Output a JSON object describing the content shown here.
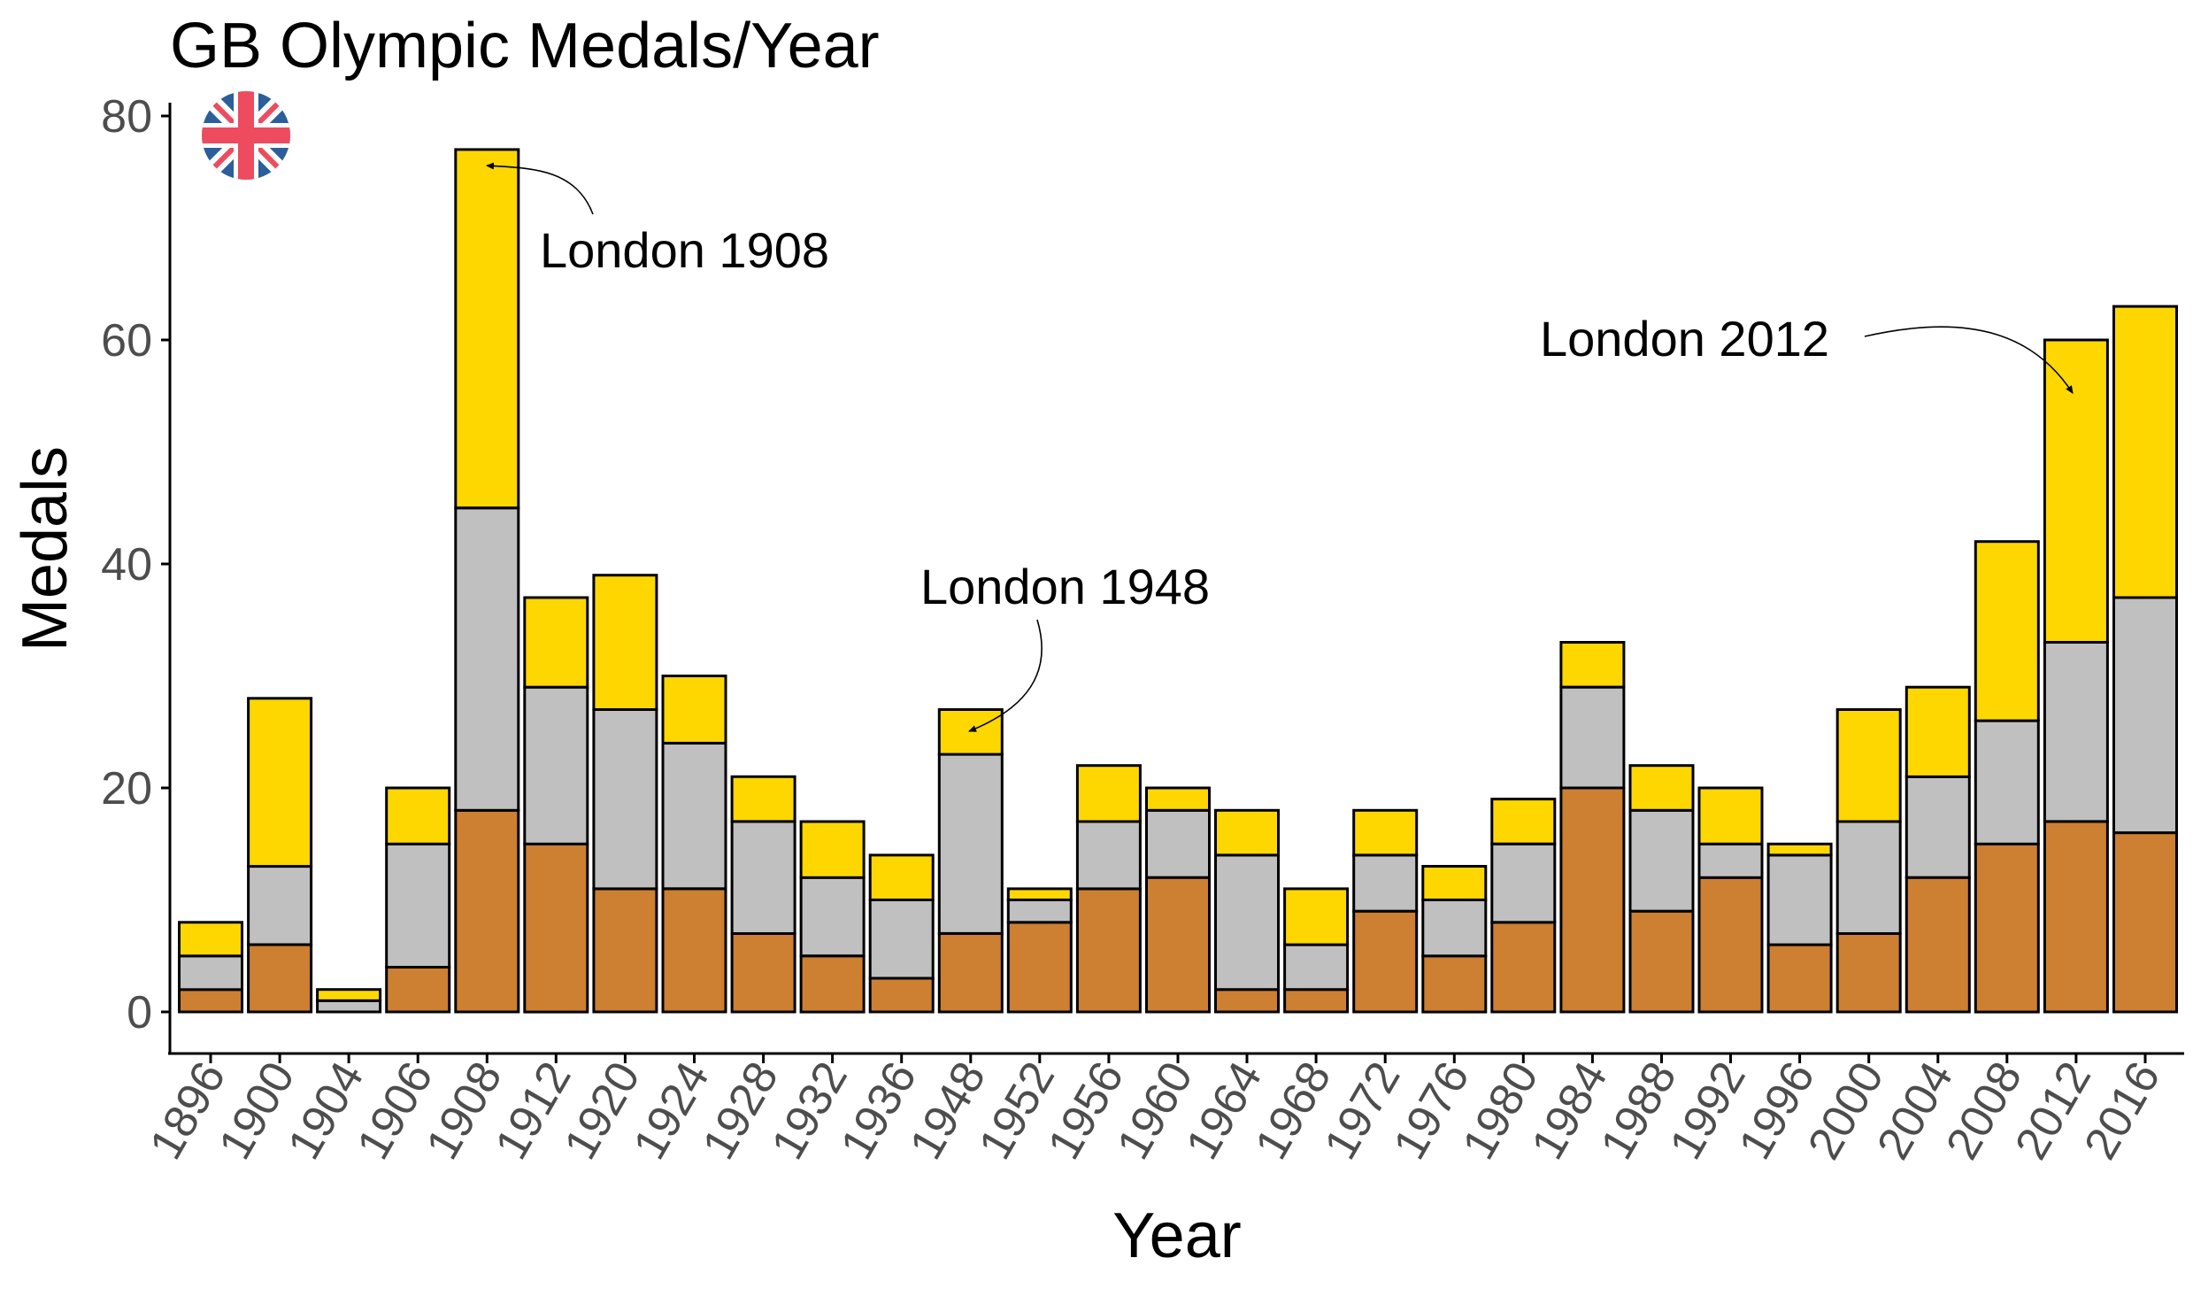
{
  "chart_data": {
    "type": "bar",
    "stacked": true,
    "title": "GB Olympic Medals/Year",
    "xlabel": "Year",
    "ylabel": "Medals",
    "ylim": [
      0,
      80
    ],
    "yticks": [
      "0",
      "20",
      "40",
      "60",
      "80"
    ],
    "grid": false,
    "legend": "none",
    "categories": [
      "1896",
      "1900",
      "1904",
      "1906",
      "1908",
      "1912",
      "1920",
      "1924",
      "1928",
      "1932",
      "1936",
      "1948",
      "1952",
      "1956",
      "1960",
      "1964",
      "1968",
      "1972",
      "1976",
      "1980",
      "1984",
      "1988",
      "1992",
      "1996",
      "2000",
      "2004",
      "2008",
      "2012",
      "2016"
    ],
    "series": [
      {
        "key": "bronze",
        "color": "#CD7F32",
        "values": [
          2,
          6,
          0,
          4,
          18,
          15,
          11,
          11,
          7,
          5,
          3,
          7,
          8,
          11,
          12,
          2,
          2,
          9,
          5,
          8,
          20,
          9,
          12,
          6,
          7,
          12,
          15,
          17,
          16
        ]
      },
      {
        "key": "silver",
        "color": "#C0C0C0",
        "values": [
          3,
          7,
          1,
          11,
          27,
          14,
          16,
          13,
          10,
          7,
          7,
          16,
          2,
          6,
          6,
          12,
          4,
          5,
          5,
          7,
          9,
          9,
          3,
          8,
          10,
          9,
          11,
          16,
          21
        ]
      },
      {
        "key": "gold",
        "color": "#FFD700",
        "values": [
          3,
          15,
          1,
          5,
          32,
          8,
          12,
          6,
          4,
          5,
          4,
          4,
          1,
          5,
          2,
          4,
          5,
          4,
          3,
          4,
          4,
          4,
          5,
          1,
          10,
          8,
          16,
          27,
          26
        ]
      }
    ],
    "annotations": [
      {
        "text": "London 1908",
        "target": "1908"
      },
      {
        "text": "London 1948",
        "target": "1948"
      },
      {
        "text": "London 2012",
        "target": "2012"
      }
    ]
  },
  "flag": {
    "icon": "union-jack-icon",
    "blue": "#2B5E9A",
    "red": "#EE4B5E",
    "white": "#FFFFFF"
  }
}
